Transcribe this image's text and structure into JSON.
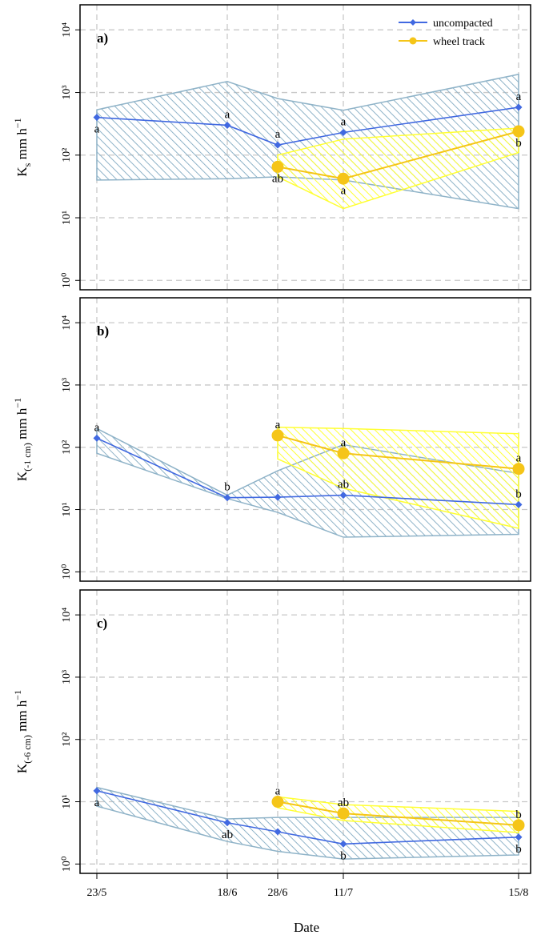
{
  "colors": {
    "uncompacted_line": "#4169e1",
    "uncompacted_band": "#8fb3c8",
    "wheel_line": "#f5c518",
    "wheel_band": "#ffff33",
    "grid": "#c8c8c8"
  },
  "chart_data": {
    "type": "line",
    "xlabel": "Date",
    "x_ticks": [
      "23/5",
      "18/6",
      "28/6",
      "11/7",
      "15/8"
    ],
    "y_scale": "log",
    "ylim": [
      1,
      10000
    ],
    "y_tick_labels": [
      "10⁰",
      "10¹",
      "10²",
      "10³",
      "10⁴"
    ],
    "grid": true,
    "legend": {
      "placement": "top-right",
      "entries": [
        "uncompacted",
        "wheel track"
      ]
    },
    "panels": [
      {
        "label": "a)",
        "ylabel_main": "K",
        "ylabel_sub": "s",
        "ylabel_unit": " mm h",
        "ylabel_exp": "−1",
        "series": [
          {
            "name": "uncompacted",
            "x": [
              "23/5",
              "18/6",
              "28/6",
              "11/7",
              "15/8"
            ],
            "values": [
              400,
              300,
              145,
              230,
              580
            ],
            "lower": [
              40,
              42,
              45,
              40,
              14
            ],
            "upper": [
              530,
              1500,
              800,
              520,
              1950
            ],
            "letters": [
              "a",
              "a",
              "a",
              "a",
              "a"
            ],
            "letter_pos": [
              "below",
              "above",
              "above",
              "above",
              "above"
            ]
          },
          {
            "name": "wheel track",
            "x": [
              "28/6",
              "11/7",
              "15/8"
            ],
            "values": [
              65,
              42,
              240
            ],
            "lower": [
              45,
              14,
              110
            ],
            "upper": [
              100,
              180,
              270
            ],
            "letters": [
              "ab",
              "a",
              "b"
            ],
            "letter_pos": [
              "below",
              "below",
              "below"
            ]
          }
        ]
      },
      {
        "label": "b)",
        "ylabel_main": "K",
        "ylabel_sub": "(-1 cm)",
        "ylabel_unit": " mm h",
        "ylabel_exp": "−1",
        "series": [
          {
            "name": "uncompacted",
            "x": [
              "23/5",
              "18/6",
              "28/6",
              "11/7",
              "15/8"
            ],
            "values": [
              140,
              15.5,
              15.8,
              17,
              12
            ],
            "lower": [
              80,
              15,
              9,
              3.6,
              4
            ],
            "upper": [
              200,
              17,
              42,
              110,
              38
            ],
            "letters": [
              "a",
              "b",
              "",
              "ab",
              "b"
            ],
            "letter_pos": [
              "above",
              "above",
              "above",
              "above",
              "above"
            ]
          },
          {
            "name": "wheel track",
            "x": [
              "28/6",
              "11/7",
              "15/8"
            ],
            "values": [
              155,
              80,
              45
            ],
            "lower": [
              65,
              22,
              5
            ],
            "upper": [
              210,
              200,
              165
            ],
            "letters": [
              "a",
              "a",
              "a"
            ],
            "letter_pos": [
              "above",
              "above",
              "above"
            ]
          }
        ]
      },
      {
        "label": "c)",
        "ylabel_main": "K",
        "ylabel_sub": "(-6 cm)",
        "ylabel_unit": " mm h",
        "ylabel_exp": "−1",
        "series": [
          {
            "name": "uncompacted",
            "x": [
              "23/5",
              "18/6",
              "28/6",
              "11/7",
              "15/8"
            ],
            "values": [
              15,
              4.6,
              3.3,
              2.1,
              2.7
            ],
            "lower": [
              8.5,
              2.3,
              1.6,
              1.2,
              1.4
            ],
            "upper": [
              17,
              5.3,
              5.6,
              5.6,
              5.6
            ],
            "letters": [
              "a",
              "ab",
              "",
              "b",
              "b"
            ],
            "letter_pos": [
              "below",
              "below",
              "below",
              "below",
              "below"
            ]
          },
          {
            "name": "wheel track",
            "x": [
              "28/6",
              "11/7",
              "15/8"
            ],
            "values": [
              10,
              6.5,
              4.2
            ],
            "lower": [
              8,
              5,
              3.2
            ],
            "upper": [
              12,
              9,
              7
            ],
            "letters": [
              "a",
              "ab",
              "b"
            ],
            "letter_pos": [
              "above",
              "above",
              "above"
            ]
          }
        ]
      }
    ]
  }
}
